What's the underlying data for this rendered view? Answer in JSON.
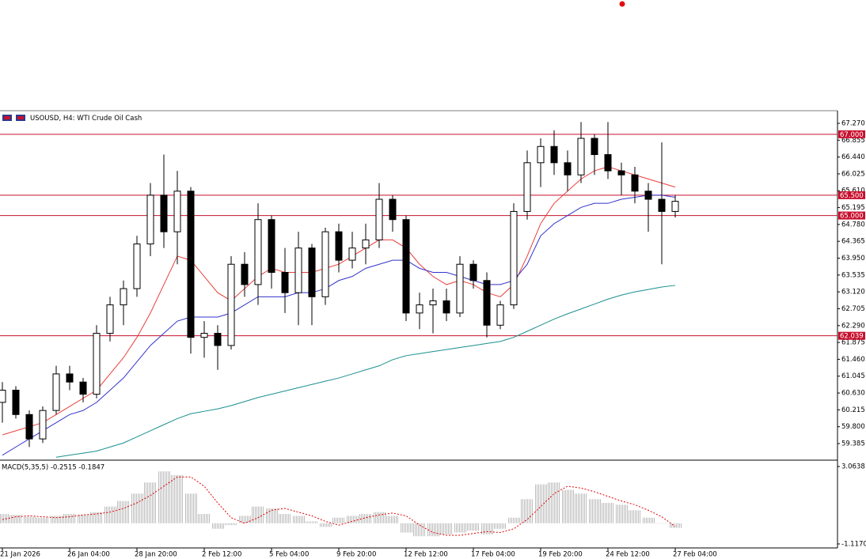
{
  "chart_data": [
    {
      "type": "candlestick",
      "title": "USOUSD, H4:  WTI Crude Oil Cash",
      "categories": [
        "21 Jan 2026",
        null,
        null,
        null,
        null,
        "26 Jan 04:00",
        null,
        null,
        null,
        null,
        "28 Jan 20:00",
        null,
        null,
        null,
        null,
        "2 Feb 12:00",
        null,
        null,
        null,
        null,
        "5 Feb 04:00",
        null,
        null,
        null,
        null,
        "9 Feb 20:00",
        null,
        null,
        null,
        null,
        "12 Feb 12:00",
        null,
        null,
        null,
        null,
        "17 Feb 04:00",
        null,
        null,
        null,
        null,
        "19 Feb 20:00",
        null,
        null,
        null,
        null,
        "24 Feb 12:00",
        null,
        null,
        null,
        null,
        "27 Feb 04:00"
      ],
      "open": [
        60.4,
        60.7,
        60.1,
        59.5,
        60.2,
        61.1,
        60.9,
        60.6,
        62.1,
        62.8,
        63.2,
        64.3,
        65.5,
        64.6,
        65.6,
        62.0,
        62.1,
        61.8,
        63.8,
        63.3,
        64.9,
        63.6,
        63.1,
        64.2,
        63.0,
        64.6,
        63.9,
        64.2,
        64.4,
        65.4,
        64.9,
        62.6,
        62.8,
        62.9,
        62.6,
        63.8,
        63.4,
        62.3,
        62.8,
        65.1,
        66.3,
        66.7,
        66.3,
        66.0,
        66.9,
        66.5,
        66.1,
        66.0,
        65.6,
        65.4,
        65.1
      ],
      "high": [
        60.9,
        60.8,
        60.2,
        60.3,
        61.3,
        61.3,
        61.0,
        62.3,
        63.0,
        63.4,
        64.5,
        65.8,
        66.5,
        66.1,
        65.7,
        62.4,
        62.3,
        64.0,
        64.1,
        65.3,
        65.0,
        64.2,
        64.6,
        64.3,
        64.7,
        64.8,
        64.6,
        64.8,
        65.8,
        65.5,
        65.0,
        63.1,
        63.2,
        63.2,
        64.0,
        63.9,
        63.6,
        62.9,
        65.3,
        66.6,
        66.9,
        67.1,
        66.6,
        67.3,
        67.0,
        67.3,
        66.3,
        66.2,
        65.8,
        66.8,
        65.5
      ],
      "low": [
        59.9,
        60.0,
        59.3,
        59.4,
        60.1,
        60.7,
        60.4,
        60.5,
        61.9,
        62.3,
        63.0,
        64.0,
        64.2,
        63.8,
        61.6,
        61.5,
        61.2,
        61.7,
        63.0,
        62.8,
        63.2,
        62.6,
        62.3,
        62.3,
        62.8,
        63.6,
        63.7,
        63.8,
        64.2,
        64.6,
        62.4,
        62.2,
        62.1,
        62.4,
        62.5,
        63.2,
        62.0,
        62.2,
        62.7,
        64.9,
        65.7,
        66.0,
        65.6,
        65.8,
        66.0,
        65.9,
        65.5,
        65.3,
        64.6,
        63.8,
        64.95
      ],
      "close": [
        60.7,
        60.1,
        59.5,
        60.2,
        61.1,
        60.9,
        60.6,
        62.1,
        62.8,
        63.2,
        64.3,
        65.5,
        64.6,
        65.6,
        62.0,
        62.1,
        61.8,
        63.8,
        63.3,
        64.9,
        63.6,
        63.1,
        64.2,
        63.0,
        64.6,
        63.9,
        64.2,
        64.4,
        65.4,
        64.9,
        62.6,
        62.8,
        62.9,
        62.6,
        63.8,
        63.4,
        62.3,
        62.8,
        65.1,
        66.3,
        66.7,
        66.3,
        66.0,
        66.9,
        66.5,
        66.1,
        66.0,
        65.6,
        65.4,
        65.1,
        65.35
      ],
      "up_color": "#ffffff",
      "down_color": "#000000",
      "lines": [
        {
          "color": "#e8403a",
          "values": [
            59.6,
            59.7,
            59.8,
            59.9,
            60.1,
            60.3,
            60.5,
            60.7,
            61.1,
            61.5,
            62.0,
            62.6,
            63.3,
            64.0,
            63.9,
            63.5,
            63.1,
            62.9,
            63.2,
            63.5,
            63.7,
            63.6,
            63.6,
            63.6,
            63.7,
            63.8,
            64.0,
            64.2,
            64.4,
            64.4,
            64.2,
            63.8,
            63.5,
            63.3,
            63.4,
            63.3,
            63.1,
            63.0,
            63.3,
            64.0,
            64.8,
            65.3,
            65.6,
            65.9,
            66.1,
            66.2,
            66.1,
            66.0,
            65.9,
            65.8,
            65.7
          ]
        },
        {
          "color": "#3333cc",
          "values": [
            59.1,
            59.3,
            59.5,
            59.7,
            59.9,
            60.1,
            60.2,
            60.4,
            60.7,
            61.0,
            61.4,
            61.8,
            62.1,
            62.4,
            62.5,
            62.5,
            62.5,
            62.6,
            62.8,
            63.0,
            63.0,
            63.0,
            63.1,
            63.1,
            63.2,
            63.4,
            63.5,
            63.7,
            63.8,
            63.9,
            63.9,
            63.7,
            63.6,
            63.6,
            63.5,
            63.4,
            63.3,
            63.3,
            63.4,
            63.8,
            64.5,
            64.8,
            65.0,
            65.2,
            65.3,
            65.3,
            65.4,
            65.45,
            65.5,
            65.5,
            65.45
          ]
        },
        {
          "color": "#1a8f8f",
          "values": [
            null,
            null,
            null,
            null,
            59.05,
            59.1,
            59.15,
            59.2,
            59.3,
            59.4,
            59.55,
            59.7,
            59.85,
            60.0,
            60.12,
            60.18,
            60.24,
            60.32,
            60.42,
            60.52,
            60.6,
            60.68,
            60.76,
            60.84,
            60.92,
            61.0,
            61.1,
            61.2,
            61.3,
            61.45,
            61.55,
            61.6,
            61.65,
            61.7,
            61.75,
            61.8,
            61.85,
            61.9,
            62.0,
            62.15,
            62.3,
            62.45,
            62.58,
            62.7,
            62.82,
            62.94,
            63.04,
            63.12,
            63.18,
            63.24,
            63.28
          ]
        }
      ],
      "hlines": [
        {
          "value": 67.0,
          "label": "67.000",
          "color": "#c8102e"
        },
        {
          "value": 65.5,
          "label": "65.500",
          "color": "#c8102e"
        },
        {
          "value": 65.0,
          "label": "65.000",
          "color": "#c8102e"
        },
        {
          "value": 62.039,
          "label": "62.039",
          "color": "#c8102e"
        }
      ],
      "ylim": [
        58.996,
        67.581
      ],
      "yticks": [
        {
          "value": 67.27,
          "label": "67.270"
        },
        66.855,
        {
          "value": 66.44,
          "label": "66.440"
        },
        66.025,
        {
          "value": 65.61,
          "label": "65.610"
        },
        65.195,
        {
          "value": 64.78,
          "label": "64.780"
        },
        64.365,
        {
          "value": 63.95,
          "label": "63.950"
        },
        63.535,
        {
          "value": 63.12,
          "label": "63.120"
        },
        62.705,
        {
          "value": 62.29,
          "label": "62.290"
        },
        61.875,
        {
          "value": 61.46,
          "label": "61.460"
        },
        61.045,
        {
          "value": 60.63,
          "label": "60.630"
        },
        60.215,
        {
          "value": 59.8,
          "label": "59.800"
        },
        59.385
      ]
    },
    {
      "type": "macd",
      "title": "MACD(5,35,5) -0.2515 -0.1847",
      "histogram": {
        "color": "#b8b8b8",
        "values": [
          0.5,
          0.45,
          0.35,
          0.3,
          0.4,
          0.5,
          0.45,
          0.6,
          0.9,
          1.2,
          1.6,
          2.2,
          2.8,
          2.6,
          1.6,
          0.5,
          -0.3,
          -0.1,
          0.4,
          0.9,
          0.8,
          0.5,
          0.4,
          0.1,
          -0.2,
          0.3,
          0.4,
          0.5,
          0.6,
          0.4,
          -0.5,
          -0.7,
          -0.7,
          -0.6,
          -0.5,
          -0.4,
          -0.6,
          -0.3,
          0.3,
          1.3,
          2.1,
          2.2,
          1.8,
          1.6,
          1.3,
          1.1,
          1.0,
          0.7,
          0.3,
          0.0,
          -0.25
        ]
      },
      "signal": {
        "color": "#e00000",
        "values": [
          0.2,
          0.35,
          0.4,
          0.35,
          0.3,
          0.35,
          0.45,
          0.5,
          0.6,
          0.8,
          1.1,
          1.5,
          2.0,
          2.5,
          2.5,
          2.0,
          1.1,
          0.3,
          0.0,
          0.3,
          0.7,
          0.8,
          0.6,
          0.4,
          0.1,
          -0.1,
          0.1,
          0.3,
          0.45,
          0.55,
          0.4,
          -0.1,
          -0.5,
          -0.65,
          -0.65,
          -0.55,
          -0.45,
          -0.5,
          -0.3,
          0.2,
          0.9,
          1.6,
          2.0,
          1.9,
          1.7,
          1.45,
          1.2,
          1.0,
          0.7,
          0.35,
          -0.18
        ]
      },
      "ylim": [
        -1.29,
        3.32
      ],
      "yticks": [
        3.0638,
        {
          "value": -1.117,
          "label": "-1.1170"
        }
      ]
    }
  ]
}
